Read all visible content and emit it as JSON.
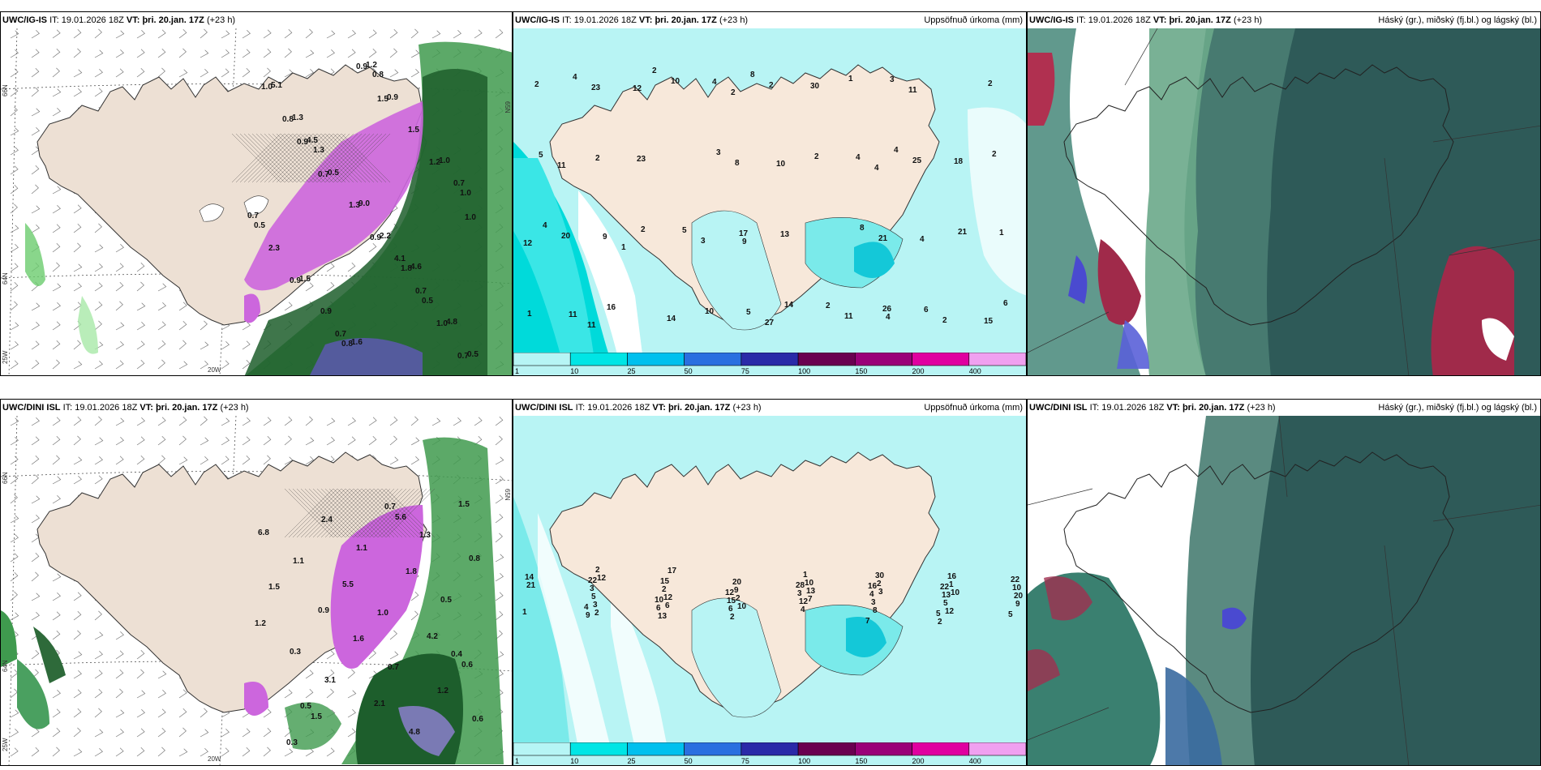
{
  "panels": [
    {
      "model": "UWC/IG-IS",
      "it_label": "IT:",
      "it_value": "19.01.2026 18Z",
      "vt_label": "VT:",
      "vt_value": "þri. 20.jan. 17Z",
      "lead": "(+23 h)",
      "right_title": ""
    },
    {
      "model": "UWC/IG-IS",
      "it_label": "IT:",
      "it_value": "19.01.2026 18Z",
      "vt_label": "VT:",
      "vt_value": "þri. 20.jan. 17Z",
      "lead": "(+23 h)",
      "right_title": "Uppsöfnuð úrkoma (mm)"
    },
    {
      "model": "UWC/IG-IS",
      "it_label": "IT:",
      "it_value": "19.01.2026 18Z",
      "vt_label": "VT:",
      "vt_value": "þri. 20.jan. 17Z",
      "lead": "(+23 h)",
      "right_title": "Háský (gr.), miðský (fj.bl.) og lágský (bl.)"
    },
    {
      "model": "UWC/DINI ISL",
      "it_label": "IT:",
      "it_value": "19.01.2026 18Z",
      "vt_label": "VT:",
      "vt_value": "þri. 20.jan. 17Z",
      "lead": "(+23 h)",
      "right_title": ""
    },
    {
      "model": "UWC/DINI ISL",
      "it_label": "IT:",
      "it_value": "19.01.2026 18Z",
      "vt_label": "VT:",
      "vt_value": "þri. 20.jan. 17Z",
      "lead": "(+23 h)",
      "right_title": "Uppsöfnuð úrkoma (mm)"
    },
    {
      "model": "UWC/DINI ISL",
      "it_label": "IT:",
      "it_value": "19.01.2026 18Z",
      "vt_label": "VT:",
      "vt_value": "þri. 20.jan. 17Z",
      "lead": "(+23 h)",
      "right_title": "Háský (gr.), miðský (fj.bl.) og lágský (bl.)"
    }
  ],
  "axis_labels": {
    "lat66": "66N",
    "lat64": "64N",
    "lon25": "25W",
    "lon20": "20W",
    "lat65": "65N"
  },
  "colorbar": {
    "ticks": [
      "1",
      "10",
      "25",
      "50",
      "75",
      "100",
      "150",
      "200",
      "400"
    ],
    "colors": [
      "#b6f5f5",
      "#00e5e5",
      "#00c0ee",
      "#2a6fe0",
      "#2a2aa8",
      "#6a0050",
      "#9a0078",
      "#e000a0",
      "#f0a0f0"
    ]
  },
  "precip_a": [
    "0.7",
    "0.7",
    "0.9",
    "0.8",
    "0.5",
    "1.0",
    "1.5",
    "0.9",
    "1.2",
    "0.8",
    "0.5",
    "0.9",
    "1.0",
    "1.3",
    "1.0",
    "1.8",
    "1.3",
    "0.9",
    "2.3",
    "1.5",
    "0.9",
    "1.0",
    "0.8",
    "0.7",
    "0.5",
    "0.5",
    "2.2",
    "1.3",
    "0.7",
    "0.7",
    "0.9",
    "1.5",
    "1.0",
    "1.6",
    "4.1",
    "4.5",
    "4.8",
    "9.0",
    "5.1",
    "4.6",
    "0.7",
    "1.2"
  ],
  "precip_b": [
    "0.9",
    "0.8",
    "0.7",
    "0.5",
    "0.4",
    "0.3",
    "1.2",
    "1.6",
    "1.5",
    "1.3",
    "1.2",
    "1.8",
    "2.4",
    "0.6",
    "0.7",
    "1.5",
    "2.1",
    "0.3",
    "0.5",
    "1.1",
    "4.2",
    "5.5",
    "6.8",
    "4.8",
    "3.1",
    "5.6",
    "1.5",
    "0.6",
    "1.0",
    "1.1"
  ],
  "accum_a": [
    "2",
    "2",
    "2",
    "1",
    "17",
    "25",
    "23",
    "27",
    "26",
    "20",
    "8",
    "11",
    "11",
    "10",
    "21",
    "11",
    "2",
    "1",
    "1",
    "3",
    "4",
    "2",
    "10",
    "11",
    "12",
    "2",
    "2",
    "2",
    "14",
    "14",
    "21",
    "23",
    "30",
    "15",
    "16",
    "13",
    "18",
    "12",
    "8",
    "6",
    "9",
    "10",
    "4",
    "4",
    "5",
    "4",
    "4",
    "3",
    "3",
    "11",
    "9",
    "8",
    "5",
    "4",
    "4",
    "6",
    "5",
    "4",
    "2",
    "2",
    "2",
    "1"
  ],
  "accum_b": [
    "2",
    "1",
    "22",
    "17",
    "30",
    "22",
    "28",
    "16",
    "15",
    "16",
    "14",
    "20",
    "22",
    "12",
    "10",
    "10",
    "12",
    "2",
    "3",
    "3",
    "1",
    "2",
    "4",
    "21",
    "9",
    "13",
    "10",
    "13",
    "20",
    "15",
    "3",
    "5",
    "12",
    "10",
    "12",
    "3",
    "4",
    "2",
    "5",
    "6",
    "7",
    "9",
    "6",
    "5",
    "3",
    "4",
    "5",
    "6",
    "8",
    "9",
    "10",
    "12",
    "13",
    "7",
    "1",
    "2",
    "2",
    "2"
  ]
}
